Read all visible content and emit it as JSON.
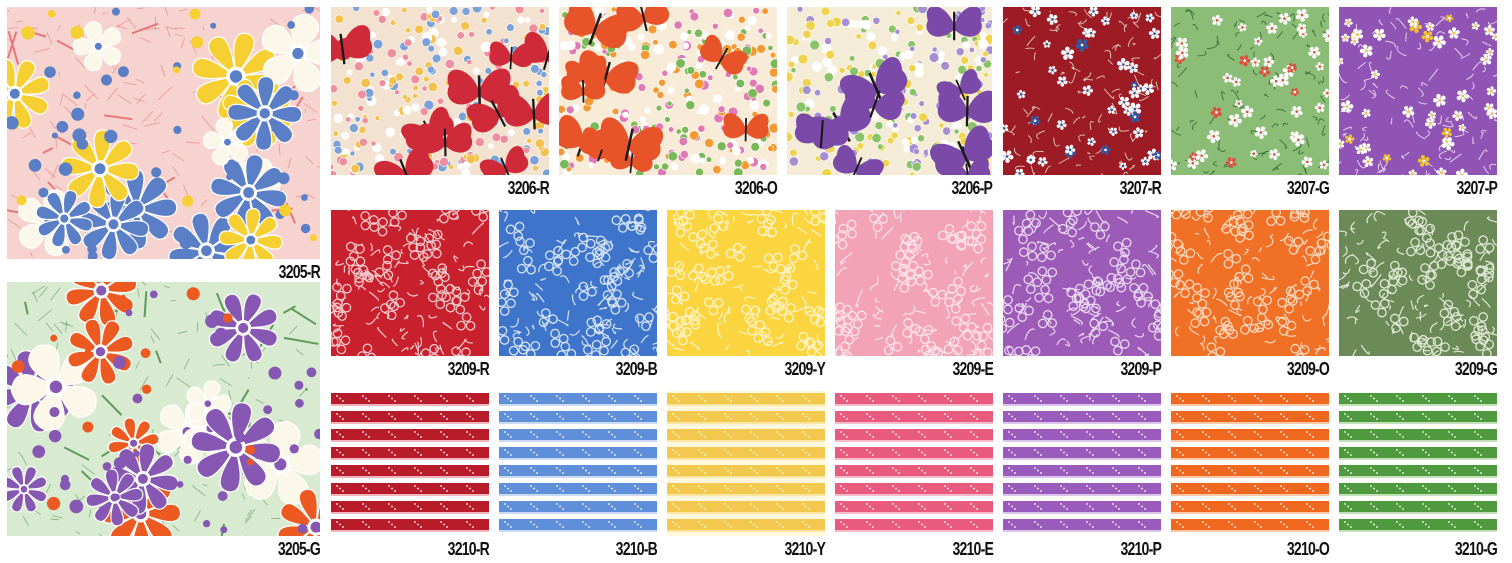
{
  "swatches": [
    {
      "code": "3205-R",
      "pattern": "large-floral",
      "colors": {
        "bg": "#f6d3cf",
        "mesh": "#e7777a",
        "a": "#5a7fc6",
        "b": "#f6cf32",
        "c": "#fbf8ea",
        "dot": "#5a7fc6"
      }
    },
    {
      "code": "3205-G",
      "pattern": "large-floral",
      "colors": {
        "bg": "#d8ead0",
        "mesh": "#5f9a5c",
        "a": "#8757b4",
        "b": "#ec5a22",
        "c": "#fbf8ea",
        "dot": "#8757b4"
      }
    },
    {
      "code": "3206-R",
      "pattern": "butterfly",
      "colors": {
        "bg": "#f3e2d0",
        "dots": [
          "#f3c24e",
          "#7aa2d8",
          "#ef8e9e",
          "#ffffff"
        ],
        "wing": "#cf2a3a"
      }
    },
    {
      "code": "3206-O",
      "pattern": "butterfly",
      "colors": {
        "bg": "#f8ecd8",
        "dots": [
          "#f39a34",
          "#7ab957",
          "#e07ab3",
          "#ffffff"
        ],
        "wing": "#e8542a"
      }
    },
    {
      "code": "3206-P",
      "pattern": "butterfly",
      "colors": {
        "bg": "#f4ecd6",
        "dots": [
          "#f0d34a",
          "#a58fd1",
          "#89c368",
          "#ffffff"
        ],
        "wing": "#7b4aa8"
      }
    },
    {
      "code": "3207-R",
      "pattern": "small-floral",
      "colors": {
        "bg": "#9c1b24",
        "flower": "#ffffff",
        "center": "#2e5aa8",
        "leaf": "#e3d6c8"
      }
    },
    {
      "code": "3207-G",
      "pattern": "small-floral",
      "colors": {
        "bg": "#8cbd77",
        "flower": "#ffffff",
        "center": "#e0503d",
        "leaf": "#2f6b30"
      }
    },
    {
      "code": "3207-P",
      "pattern": "small-floral",
      "colors": {
        "bg": "#9054b4",
        "flower": "#ffffff",
        "center": "#f3c12e",
        "leaf": "#f2e4f6"
      }
    },
    {
      "code": "3209-R",
      "pattern": "clover",
      "colors": {
        "bg": "#c9202d",
        "fg": "#f4c9cb"
      }
    },
    {
      "code": "3209-B",
      "pattern": "clover",
      "colors": {
        "bg": "#3e74c9",
        "fg": "#d7e4f6"
      }
    },
    {
      "code": "3209-Y",
      "pattern": "clover",
      "colors": {
        "bg": "#fbd53f",
        "fg": "#fff3c6"
      }
    },
    {
      "code": "3209-E",
      "pattern": "clover",
      "colors": {
        "bg": "#f3a3b6",
        "fg": "#fde3ea"
      }
    },
    {
      "code": "3209-P",
      "pattern": "clover",
      "colors": {
        "bg": "#9c5bb7",
        "fg": "#e9d8f1"
      }
    },
    {
      "code": "3209-O",
      "pattern": "clover",
      "colors": {
        "bg": "#f07126",
        "fg": "#fbd6bd"
      }
    },
    {
      "code": "3209-G",
      "pattern": "clover",
      "colors": {
        "bg": "#6b8a57",
        "fg": "#dfe8d4"
      }
    },
    {
      "code": "3210-R",
      "pattern": "stripe",
      "colors": {
        "band": "#b81c2b",
        "light": "#ffffff",
        "edge": "#f0b6bb"
      }
    },
    {
      "code": "3210-B",
      "pattern": "stripe",
      "colors": {
        "band": "#5f8fd8",
        "light": "#ffffff",
        "edge": "#c8dbf3"
      }
    },
    {
      "code": "3210-Y",
      "pattern": "stripe",
      "colors": {
        "band": "#f3c84e",
        "light": "#fff8dd",
        "edge": "#fbe6a4"
      }
    },
    {
      "code": "3210-E",
      "pattern": "stripe",
      "colors": {
        "band": "#e95a7f",
        "light": "#ffffff",
        "edge": "#f7bccb"
      }
    },
    {
      "code": "3210-P",
      "pattern": "stripe",
      "colors": {
        "band": "#9a5cbc",
        "light": "#ffffff",
        "edge": "#dcc5ea"
      }
    },
    {
      "code": "3210-O",
      "pattern": "stripe",
      "colors": {
        "band": "#f0681f",
        "light": "#ffffff",
        "edge": "#f9c8a9"
      }
    },
    {
      "code": "3210-G",
      "pattern": "stripe",
      "colors": {
        "band": "#4f9a3e",
        "light": "#ffffff",
        "edge": "#c3e0b8"
      }
    }
  ]
}
